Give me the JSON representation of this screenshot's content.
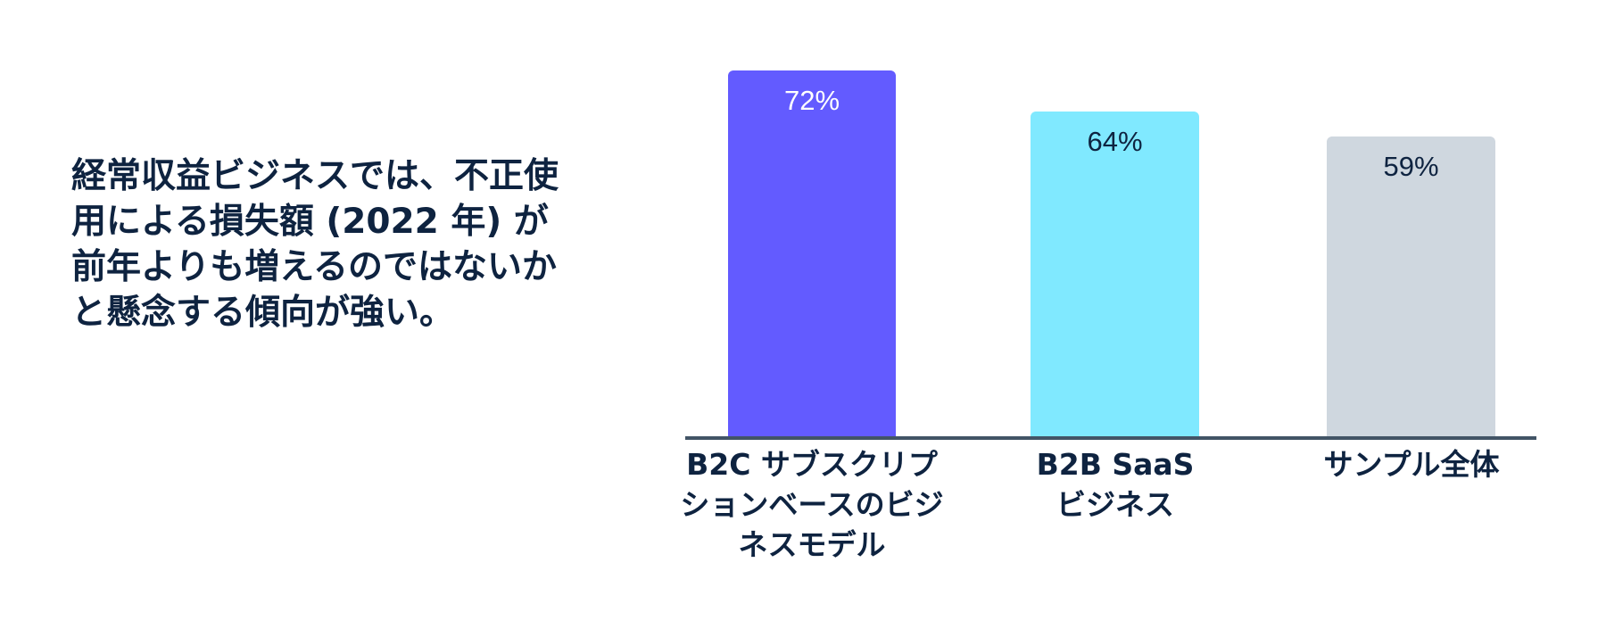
{
  "headline": "経常収益ビジネスでは、不正使用による損失額 (2022 年) が前年よりも増えるのではないかと懸念する傾向が強い。",
  "headline_lines": [
    "経常収益ビジネスでは、不正使",
    "用による損失額 (2022 年) が",
    "前年よりも増えるのではないか",
    "と懸念する傾向が強い。"
  ],
  "colors": {
    "bar_b2c": "#635bff",
    "bar_b2b": "#80e9ff",
    "bar_all": "#cfd7df",
    "text_dark": "#0e2340",
    "axis": "#425466"
  },
  "chart_data": {
    "type": "bar",
    "title": "経常収益ビジネスでは、不正使用による損失額 (2022 年) が前年よりも増えるのではないかと懸念する傾向が強い。",
    "categories": [
      "B2C サブスクリプションベースのビジネスモデル",
      "B2B SaaS ビジネス",
      "サンプル全体"
    ],
    "values": [
      72,
      64,
      59
    ],
    "value_labels": [
      "72%",
      "64%",
      "59%"
    ],
    "unit": "%",
    "xlabel": "",
    "ylabel": "",
    "ylim": [
      0,
      100
    ],
    "grid": false,
    "legend": "none",
    "bar_colors": [
      "#635bff",
      "#80e9ff",
      "#cfd7df"
    ],
    "label_colors": [
      "#ffffff",
      "#0e2340",
      "#0e2340"
    ]
  },
  "labels_display": [
    "B2C サブスクリプ\nションベースのビジ\nネスモデル",
    "B2B SaaS\nビジネス",
    "サンプル全体"
  ]
}
